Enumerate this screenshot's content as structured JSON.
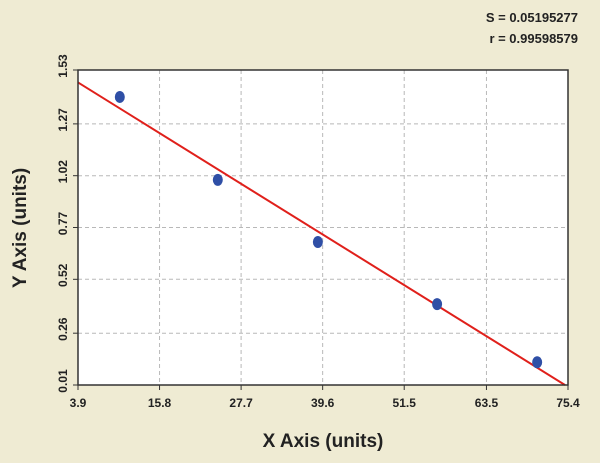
{
  "chart_data": {
    "type": "scatter",
    "annotations": [
      "S = 0.05195277",
      "r = 0.99598579"
    ],
    "x_label": "X Axis (units)",
    "y_label": "Y Axis (units)",
    "series": [
      {
        "color": "#2f4fa6",
        "x": [
          10.0,
          24.3,
          38.9,
          56.3,
          70.9
        ],
        "values": [
          1.4,
          1.0,
          0.7,
          0.4,
          0.12
        ]
      }
    ],
    "fit_line": {
      "color": "#e0201b",
      "x": [
        3.9,
        74.96
      ],
      "values": [
        1.47,
        0.01
      ]
    },
    "xlim": [
      3.9,
      75.4
    ],
    "xticks": [
      3.9,
      15.8,
      27.7,
      39.6,
      51.5,
      63.5,
      75.4
    ],
    "ylim": [
      0.01,
      1.53
    ],
    "yticks": [
      0.01,
      0.26,
      0.52,
      0.77,
      1.02,
      1.27,
      1.53
    ],
    "grid": true
  }
}
